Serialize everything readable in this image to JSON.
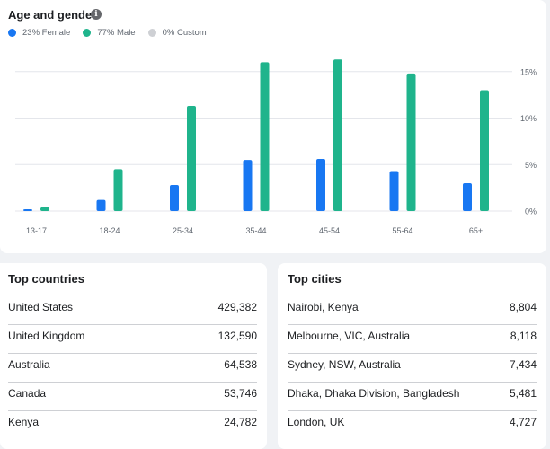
{
  "age_gender": {
    "title": "Age and gender",
    "legend": [
      {
        "label": "23% Female",
        "color": "#1877f2"
      },
      {
        "label": "77% Male",
        "color": "#1fb48c"
      },
      {
        "label": "0% Custom",
        "color": "#ced0d4"
      }
    ]
  },
  "chart_data": {
    "type": "bar",
    "title": "Age and gender",
    "categories": [
      "13-17",
      "18-24",
      "25-34",
      "35-44",
      "45-54",
      "55-64",
      "65+"
    ],
    "series": [
      {
        "name": "23% Female",
        "color": "#1877f2",
        "values": [
          0.1,
          1.2,
          2.8,
          5.5,
          5.6,
          4.3,
          3.0
        ]
      },
      {
        "name": "77% Male",
        "color": "#1fb48c",
        "values": [
          0.4,
          4.5,
          11.3,
          16.0,
          16.3,
          14.8,
          13.0
        ]
      }
    ],
    "yticks": [
      "0%",
      "5%",
      "10%",
      "15%"
    ],
    "ylim": [
      0,
      17
    ],
    "grid": true,
    "legend_position": "top-left"
  },
  "top_countries": {
    "title": "Top countries",
    "rows": [
      {
        "name": "United States",
        "value": "429,382"
      },
      {
        "name": "United Kingdom",
        "value": "132,590"
      },
      {
        "name": "Australia",
        "value": "64,538"
      },
      {
        "name": "Canada",
        "value": "53,746"
      },
      {
        "name": "Kenya",
        "value": "24,782"
      }
    ]
  },
  "top_cities": {
    "title": "Top cities",
    "rows": [
      {
        "name": "Nairobi, Kenya",
        "value": "8,804"
      },
      {
        "name": "Melbourne, VIC, Australia",
        "value": "8,118"
      },
      {
        "name": "Sydney, NSW, Australia",
        "value": "7,434"
      },
      {
        "name": "Dhaka, Dhaka Division, Bangladesh",
        "value": "5,481"
      },
      {
        "name": "London, UK",
        "value": "4,727"
      }
    ]
  }
}
